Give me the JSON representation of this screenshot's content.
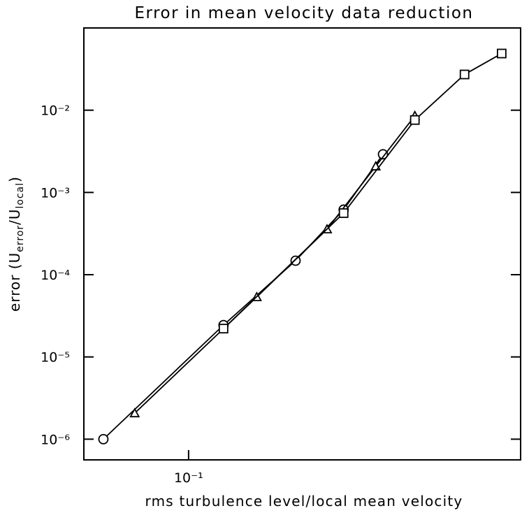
{
  "chart_data": {
    "type": "line",
    "title": "Error in mean velocity data reduction",
    "xlabel": "rms turbulence level/local mean velocity",
    "ylabel": {
      "prefix": "error (U",
      "sub1": "error",
      "mid": "/U",
      "sub2": "local",
      "suffix": ")"
    },
    "xscale": "log",
    "yscale": "log",
    "xlim": [
      0.05,
      0.9
    ],
    "ylim": [
      5.6e-07,
      0.1
    ],
    "xticks": [
      {
        "value": 0.1,
        "label": "10⁻¹"
      }
    ],
    "yticks": [
      {
        "value": 1e-06,
        "label": "10⁻⁶"
      },
      {
        "value": 1e-05,
        "label": "10⁻⁵"
      },
      {
        "value": 0.0001,
        "label": "10⁻⁴"
      },
      {
        "value": 0.001,
        "label": "10⁻³"
      },
      {
        "value": 0.01,
        "label": "10⁻²"
      }
    ],
    "series": [
      {
        "marker": "circle",
        "color": "#000000",
        "x": [
          0.0569,
          0.126,
          0.203,
          0.279,
          0.362
        ],
        "values": [
          1e-06,
          2.44e-05,
          0.000148,
          0.000618,
          0.00291
        ]
      },
      {
        "marker": "triangle",
        "color": "#000000",
        "x": [
          0.07,
          0.157,
          0.25,
          0.345,
          0.447
        ],
        "values": [
          2.07e-06,
          5.35e-05,
          0.000357,
          0.00208,
          0.00855
        ]
      },
      {
        "marker": "square",
        "color": "#000000",
        "x": [
          0.126,
          0.279,
          0.447,
          0.621,
          0.794
        ],
        "values": [
          2.21e-05,
          0.000561,
          0.0076,
          0.0272,
          0.0489
        ]
      }
    ]
  }
}
